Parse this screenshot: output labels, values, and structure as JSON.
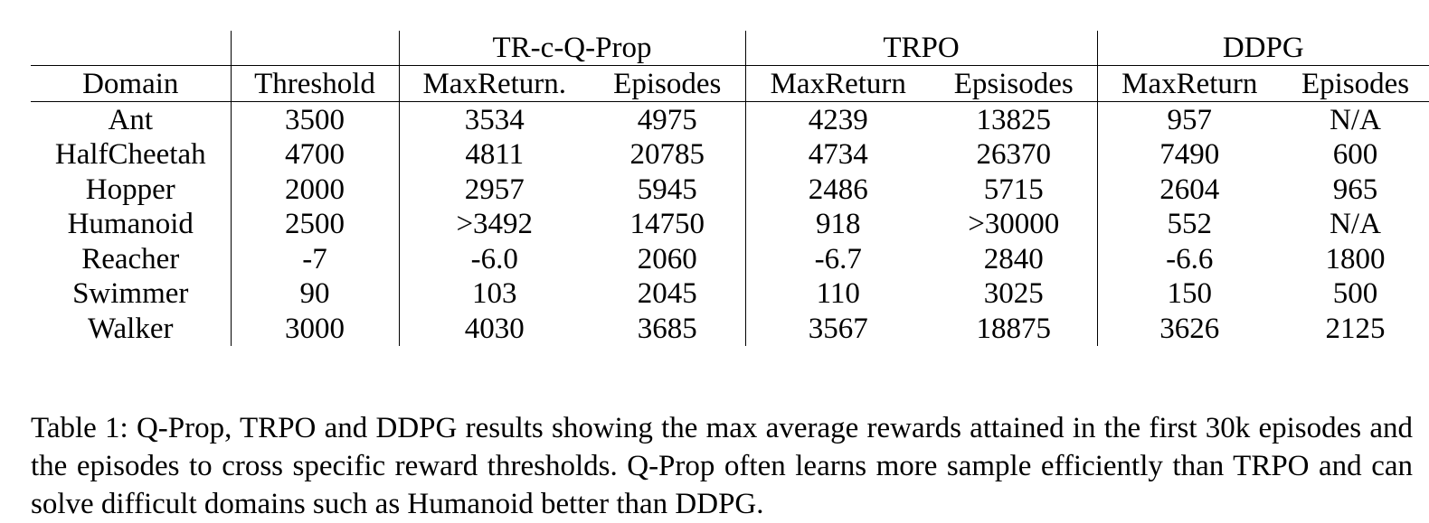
{
  "table": {
    "groups": [
      "TR-c-Q-Prop",
      "TRPO",
      "DDPG"
    ],
    "columns": [
      "Domain",
      "Threshold",
      "MaxReturn.",
      "Episodes",
      "MaxReturn",
      "Epsisodes",
      "MaxReturn",
      "Episodes"
    ],
    "rows": [
      {
        "cells": [
          "Ant",
          "3500",
          "3534",
          "4975",
          "4239",
          "13825",
          "957",
          "N/A"
        ],
        "bold": [
          false,
          false,
          false,
          true,
          true,
          false,
          false,
          false
        ]
      },
      {
        "cells": [
          "HalfCheetah",
          "4700",
          "4811",
          "20785",
          "4734",
          "26370",
          "7490",
          "600"
        ],
        "bold": [
          false,
          false,
          false,
          false,
          false,
          false,
          true,
          true
        ]
      },
      {
        "cells": [
          "Hopper",
          "2000",
          "2957",
          "5945",
          "2486",
          "5715",
          "2604",
          "965"
        ],
        "bold": [
          false,
          false,
          true,
          false,
          false,
          false,
          false,
          true
        ]
      },
      {
        "cells": [
          "Humanoid",
          "2500",
          ">3492",
          "14750",
          "918",
          ">30000",
          "552",
          "N/A"
        ],
        "bold": [
          false,
          false,
          true,
          true,
          false,
          false,
          false,
          false
        ]
      },
      {
        "cells": [
          "Reacher",
          "-7",
          "-6.0",
          "2060",
          "-6.7",
          "2840",
          "-6.6",
          "1800"
        ],
        "bold": [
          false,
          false,
          true,
          true,
          false,
          false,
          false,
          true
        ]
      },
      {
        "cells": [
          "Swimmer",
          "90",
          "103",
          "2045",
          "110",
          "3025",
          "150",
          "500"
        ],
        "bold": [
          false,
          false,
          false,
          false,
          false,
          false,
          true,
          true
        ]
      },
      {
        "cells": [
          "Walker",
          "3000",
          "4030",
          "3685",
          "3567",
          "18875",
          "3626",
          "2125"
        ],
        "bold": [
          false,
          false,
          true,
          false,
          false,
          false,
          false,
          true
        ]
      }
    ]
  },
  "caption": "Table 1: Q-Prop, TRPO and DDPG results showing the max average rewards attained in the first 30k episodes and the episodes to cross specific reward thresholds. Q-Prop often learns more sample efficiently than TRPO and can solve difficult domains such as Humanoid better than DDPG."
}
